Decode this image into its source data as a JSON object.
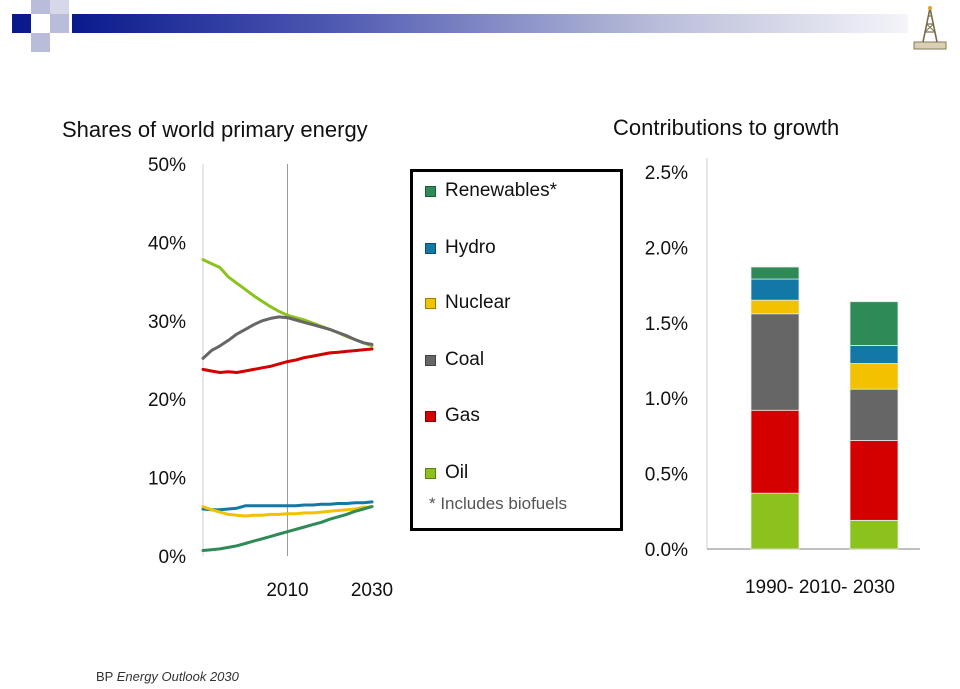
{
  "source": {
    "org": "BP",
    "publication": "Energy Outlook 2030"
  },
  "legend": {
    "items": [
      {
        "label": "Renewables*",
        "color": "#2e8b57"
      },
      {
        "label": "Hydro",
        "color": "#1478a6"
      },
      {
        "label": "Nuclear",
        "color": "#f2c200"
      },
      {
        "label": "Coal",
        "color": "#666666"
      },
      {
        "label": "Gas",
        "color": "#d40000"
      },
      {
        "label": "Oil",
        "color": "#8cc21e"
      }
    ],
    "note": "* Includes biofuels"
  },
  "chart_data": [
    {
      "type": "line",
      "title": "Shares of world primary energy",
      "xlim": [
        1990,
        2030
      ],
      "ylim": [
        0,
        50
      ],
      "y_ticks": [
        "0%",
        "10%",
        "20%",
        "30%",
        "40%",
        "50%"
      ],
      "x_ticks": [
        "2010",
        "2030"
      ],
      "x_tick_values": [
        2010,
        2030
      ],
      "vline": 2010,
      "x": [
        1990,
        1992,
        1994,
        1996,
        1998,
        2000,
        2002,
        2004,
        2006,
        2008,
        2010,
        2012,
        2014,
        2016,
        2018,
        2020,
        2022,
        2024,
        2026,
        2028,
        2030
      ],
      "series": [
        {
          "name": "Oil",
          "color": "#8cc21e",
          "values": [
            37.8,
            37.3,
            36.8,
            35.6,
            34.8,
            34.0,
            33.2,
            32.5,
            31.8,
            31.2,
            30.7,
            30.4,
            30.1,
            29.7,
            29.3,
            28.9,
            28.5,
            28.0,
            27.6,
            27.2,
            26.8
          ]
        },
        {
          "name": "Coal",
          "color": "#666666",
          "values": [
            25.2,
            26.2,
            26.8,
            27.5,
            28.3,
            28.9,
            29.5,
            30.0,
            30.3,
            30.5,
            30.4,
            30.1,
            29.8,
            29.5,
            29.2,
            28.9,
            28.5,
            28.1,
            27.6,
            27.2,
            27.0
          ]
        },
        {
          "name": "Gas",
          "color": "#d40000",
          "values": [
            23.8,
            23.6,
            23.4,
            23.5,
            23.4,
            23.6,
            23.8,
            24.0,
            24.2,
            24.5,
            24.8,
            25.0,
            25.3,
            25.5,
            25.7,
            25.9,
            26.0,
            26.1,
            26.2,
            26.3,
            26.4
          ]
        },
        {
          "name": "Hydro",
          "color": "#1478a6",
          "values": [
            6.0,
            5.9,
            5.9,
            6.0,
            6.1,
            6.4,
            6.4,
            6.4,
            6.4,
            6.4,
            6.4,
            6.4,
            6.5,
            6.5,
            6.6,
            6.6,
            6.7,
            6.7,
            6.8,
            6.8,
            6.9
          ]
        },
        {
          "name": "Nuclear",
          "color": "#f2c200",
          "values": [
            6.3,
            5.9,
            5.6,
            5.3,
            5.2,
            5.1,
            5.2,
            5.2,
            5.3,
            5.3,
            5.4,
            5.4,
            5.5,
            5.5,
            5.6,
            5.7,
            5.8,
            5.9,
            6.0,
            6.2,
            6.3
          ]
        },
        {
          "name": "Renewables*",
          "color": "#2e8b57",
          "values": [
            0.7,
            0.8,
            0.9,
            1.1,
            1.3,
            1.6,
            1.9,
            2.2,
            2.5,
            2.8,
            3.1,
            3.4,
            3.7,
            4.0,
            4.3,
            4.7,
            5.0,
            5.3,
            5.7,
            6.0,
            6.3
          ]
        }
      ]
    },
    {
      "type": "bar",
      "stacked": true,
      "title": "Contributions to growth",
      "ylim": [
        0,
        2.5
      ],
      "y_ticks": [
        "0.0%",
        "0.5%",
        "1.0%",
        "1.5%",
        "2.0%",
        "2.5%"
      ],
      "x_label": "1990- 2010- 2030",
      "categories": [
        "1990-2010",
        "2010-2030"
      ],
      "series": [
        {
          "name": "Oil",
          "color": "#8cc21e",
          "values": [
            0.37,
            0.19
          ]
        },
        {
          "name": "Gas",
          "color": "#d40000",
          "values": [
            0.55,
            0.53
          ]
        },
        {
          "name": "Coal",
          "color": "#666666",
          "values": [
            0.64,
            0.34
          ]
        },
        {
          "name": "Nuclear",
          "color": "#f2c200",
          "values": [
            0.09,
            0.17
          ]
        },
        {
          "name": "Hydro",
          "color": "#1478a6",
          "values": [
            0.14,
            0.12
          ]
        },
        {
          "name": "Renewables*",
          "color": "#2e8b57",
          "values": [
            0.08,
            0.29
          ]
        }
      ]
    }
  ]
}
